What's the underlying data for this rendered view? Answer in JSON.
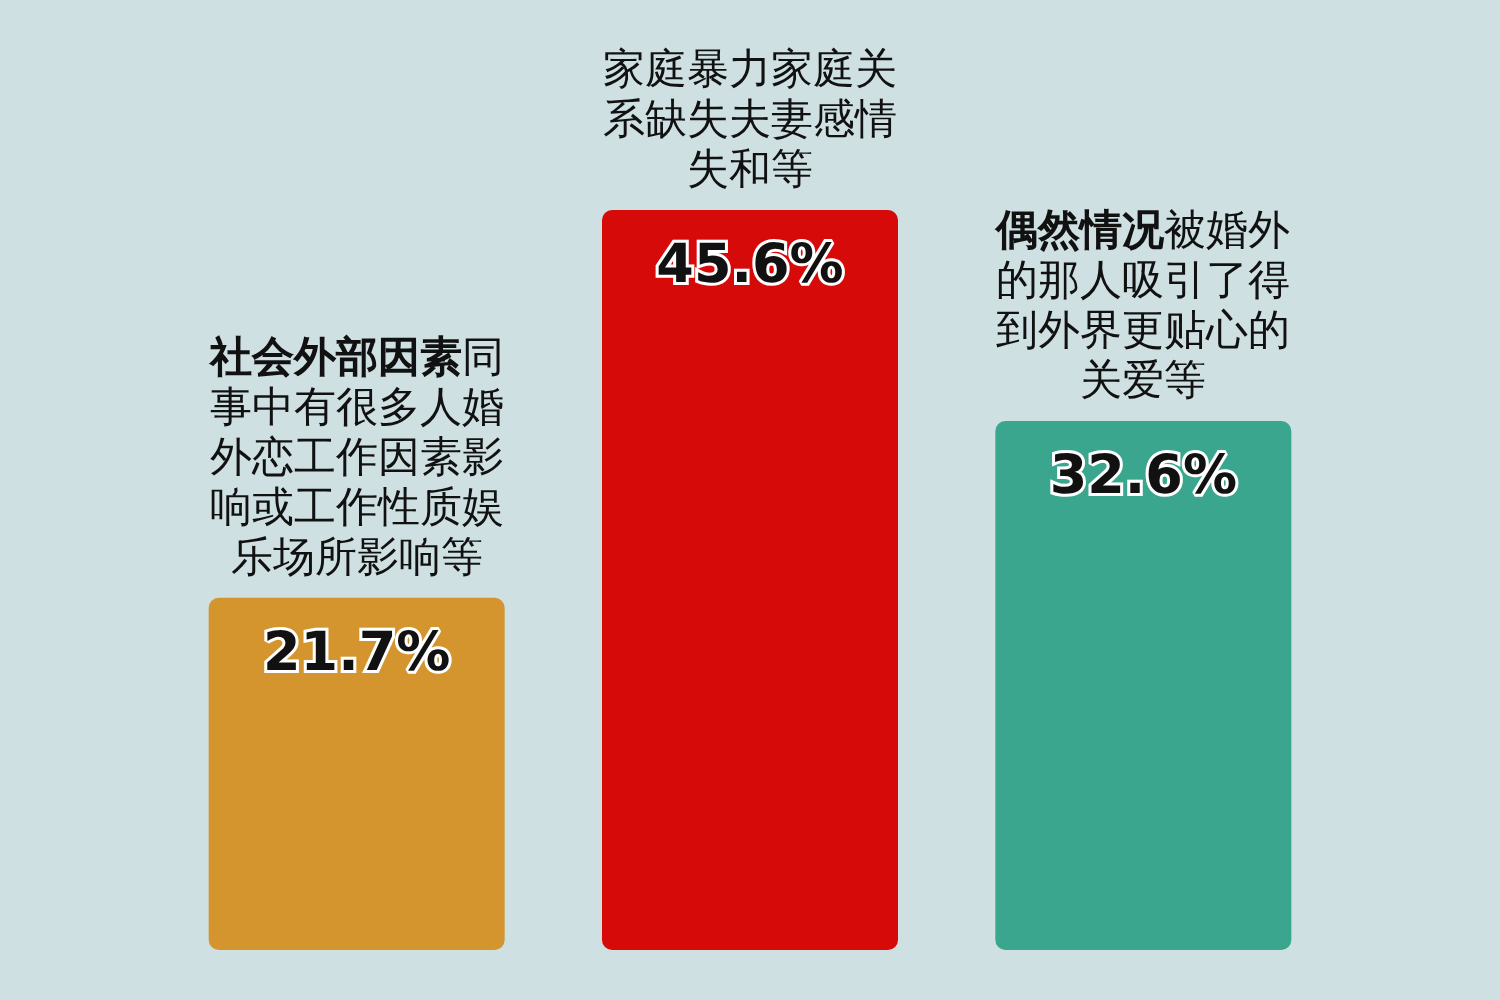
{
  "chart_data": {
    "type": "bar",
    "categories": [
      "社会外部因素",
      null,
      "偶然情况"
    ],
    "values": [
      21.7,
      45.6,
      32.6
    ],
    "colors": [
      "#d4952f",
      "#d70a0a",
      "#3aa68e"
    ],
    "value_labels": [
      "21.7%",
      "45.6%",
      "32.6%"
    ],
    "annotations": [
      "同事中有很多人婚外恋工作因素影响或工作性质娱乐场所影响等",
      "家庭暴力家庭关系缺失夫妻感情失和等",
      "被婚外的那人吸引了得到外界更贴心的关爱等"
    ]
  }
}
